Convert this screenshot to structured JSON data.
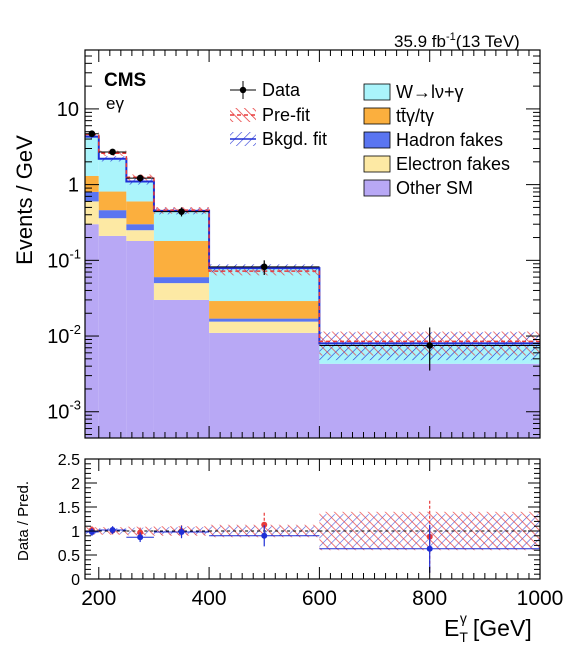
{
  "header": {
    "cms": "CMS",
    "channel": "eγ",
    "lumi": "35.9 fb",
    "lumi_exp": "-1",
    "energy": "(13 TeV)"
  },
  "axes": {
    "ylabel_main": "Events / GeV",
    "ylabel_ratio": "Data / Pred.",
    "xlabel_main": "E",
    "xlabel_sub": "T",
    "xlabel_sup": "γ",
    "xlabel_unit": "[GeV]"
  },
  "legend": {
    "data": "Data",
    "prefit": "Pre-fit",
    "bkgfit": "Bkgd. fit",
    "wg": "W→lν+γ",
    "ttg": "tt̄γ/tγ",
    "hadron": "Hadron fakes",
    "electron": "Electron fakes",
    "othersm": "Other SM"
  },
  "colors": {
    "wg": "#aaf4fb",
    "ttg": "#fbaf3e",
    "hadron": "#5a75f1",
    "electron": "#fde9a4",
    "othersm": "#b8a8f5",
    "prefit": "#e83a3a",
    "bkgfit": "#1f2fd6"
  },
  "chart_data": {
    "type": "bar",
    "stacked": true,
    "y_scale": "log",
    "x_bins": [
      175,
      200,
      250,
      300,
      400,
      600,
      1000
    ],
    "xlim": [
      175,
      1000
    ],
    "ylim": [
      0.00045,
      60
    ],
    "x_ticks": [
      200,
      400,
      600,
      800,
      1000
    ],
    "x_tick_labels": [
      "200",
      "400",
      "600",
      "800",
      "1000"
    ],
    "y_tick_labels": [
      {
        "base": "10",
        "exp": "-3"
      },
      {
        "base": "10",
        "exp": "-2"
      },
      {
        "base": "10",
        "exp": "-1"
      },
      {
        "base": "1",
        "exp": ""
      },
      {
        "base": "10",
        "exp": ""
      }
    ],
    "stack": [
      {
        "key": "othersm",
        "values": [
          0.3,
          0.21,
          0.18,
          0.03,
          0.011,
          0.0043
        ]
      },
      {
        "key": "electron",
        "values": [
          0.3,
          0.15,
          0.07,
          0.02,
          0.0045,
          0.0
        ]
      },
      {
        "key": "hadron",
        "values": [
          0.2,
          0.1,
          0.05,
          0.01,
          0.0015,
          0.0
        ]
      },
      {
        "key": "ttg",
        "values": [
          0.5,
          0.35,
          0.3,
          0.12,
          0.012,
          0.0
        ]
      },
      {
        "key": "wg",
        "values": [
          3.0,
          1.4,
          0.5,
          0.27,
          0.05,
          0.0037
        ]
      }
    ],
    "bkgd_fit_total": [
      4.3,
      2.2,
      1.1,
      0.45,
      0.079,
      0.008
    ],
    "bkgd_fit_rel_unc": [
      0.08,
      0.08,
      0.09,
      0.1,
      0.12,
      0.4
    ],
    "prefit_total": [
      4.6,
      2.6,
      1.25,
      0.46,
      0.072,
      0.0085
    ],
    "prefit_rel_unc": [
      0.08,
      0.08,
      0.09,
      0.1,
      0.12,
      0.35
    ],
    "data_points": [
      {
        "x": 187.5,
        "y": 4.7,
        "yerr": [
          0.4,
          0.4
        ]
      },
      {
        "x": 225,
        "y": 2.7,
        "yerr": [
          0.22,
          0.22
        ]
      },
      {
        "x": 275,
        "y": 1.22,
        "yerr": [
          0.13,
          0.13
        ]
      },
      {
        "x": 350,
        "y": 0.44,
        "yerr": [
          0.06,
          0.06
        ]
      },
      {
        "x": 500,
        "y": 0.082,
        "yerr": [
          0.018,
          0.018
        ]
      },
      {
        "x": 800,
        "y": 0.0075,
        "yerr": [
          0.004,
          0.0055
        ]
      }
    ],
    "ratio": {
      "ylim": [
        0,
        2.5
      ],
      "y_ticks": [
        0,
        0.5,
        1,
        1.5,
        2,
        2.5
      ],
      "y_tick_labels": [
        "0",
        "0.5",
        "1",
        "1.5",
        "2",
        "2.5"
      ],
      "fit_points": [
        {
          "x": 187.5,
          "y": 0.98,
          "yerr": 0.08
        },
        {
          "x": 225,
          "y": 1.02,
          "yerr": 0.08
        },
        {
          "x": 275,
          "y": 0.87,
          "yerr": 0.1
        },
        {
          "x": 350,
          "y": 0.98,
          "yerr": 0.13
        },
        {
          "x": 500,
          "y": 0.9,
          "yerr": 0.22
        },
        {
          "x": 800,
          "y": 0.63,
          "yerr": 0.5
        }
      ],
      "prefit_points": [
        {
          "x": 187.5,
          "y": 1.02,
          "yerr": 0.08
        },
        {
          "x": 225,
          "y": 1.01,
          "yerr": 0.08
        },
        {
          "x": 275,
          "y": 0.97,
          "yerr": 0.1
        },
        {
          "x": 350,
          "y": 1.0,
          "yerr": 0.12
        },
        {
          "x": 500,
          "y": 1.13,
          "yerr": 0.25
        },
        {
          "x": 800,
          "y": 0.88,
          "yerr": 0.75
        }
      ],
      "fit_band": [
        0.06,
        0.06,
        0.07,
        0.08,
        0.1,
        0.35
      ],
      "prefit_band": [
        0.08,
        0.08,
        0.09,
        0.1,
        0.13,
        0.4
      ]
    }
  }
}
